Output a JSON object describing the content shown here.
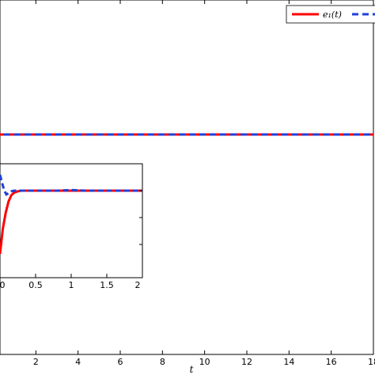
{
  "chart_data": {
    "type": "line",
    "xlabel": "t",
    "ylabel": "",
    "xlim": [
      0,
      18
    ],
    "x_ticks": [
      2,
      4,
      6,
      8,
      10,
      12,
      14,
      16,
      18
    ],
    "x_tick_labels": [
      "2",
      "4",
      "6",
      "8",
      "10",
      "12",
      "14",
      "16",
      "18"
    ],
    "ylim": [
      -1,
      1
    ],
    "grid": false,
    "legend_placement": "top-right",
    "legend": [
      "e₁(t)",
      ""
    ],
    "series": [
      {
        "name": "e₁(t)",
        "color": "#ff0000",
        "style": "solid",
        "x": [
          0,
          18
        ],
        "y": [
          0,
          0
        ]
      },
      {
        "name": "",
        "color": "#1f3fd8",
        "style": "dashed",
        "x": [
          0,
          18
        ],
        "y": [
          0,
          0
        ]
      }
    ],
    "inset": {
      "xlim": [
        0,
        2
      ],
      "x_ticks": [
        0,
        0.5,
        1,
        1.5,
        2
      ],
      "x_tick_labels": [
        "0",
        "0.5",
        "1",
        "1.5",
        "2"
      ],
      "ylim": [
        -1,
        0.3
      ],
      "series": [
        {
          "name": "e₁(t)",
          "color": "#ff0000",
          "style": "solid",
          "x": [
            0.0,
            0.04,
            0.08,
            0.12,
            0.16,
            0.2,
            0.25,
            0.3,
            0.4,
            0.6,
            0.8,
            1.0,
            1.2,
            1.5,
            2.0
          ],
          "y": [
            -1.0,
            -0.6,
            -0.35,
            -0.17,
            -0.07,
            -0.03,
            -0.01,
            0.0,
            0.0,
            0.0,
            0.0,
            0.0,
            0.0,
            0.0,
            0.0
          ]
        },
        {
          "name": "",
          "color": "#1f3fd8",
          "style": "dashed",
          "x": [
            0.0,
            0.03,
            0.06,
            0.09,
            0.12,
            0.16,
            0.2,
            0.25,
            0.3,
            0.4,
            0.6,
            0.8,
            1.0,
            1.2,
            1.5,
            2.0
          ],
          "y": [
            0.25,
            0.12,
            0.0,
            -0.06,
            -0.04,
            -0.01,
            0.0,
            0.0,
            0.0,
            0.0,
            0.0,
            0.0,
            0.01,
            0.0,
            0.0,
            0.0
          ]
        }
      ]
    }
  }
}
